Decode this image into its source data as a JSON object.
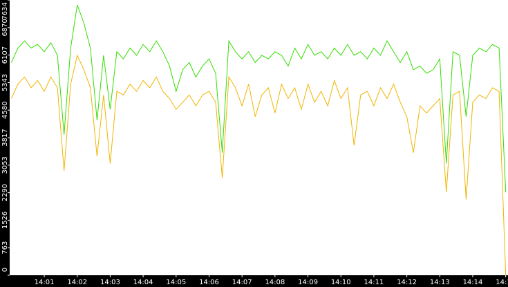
{
  "chart_data": {
    "type": "line",
    "x": [
      0,
      0.2,
      0.4,
      0.6,
      0.8,
      1.0,
      1.2,
      1.4,
      1.6,
      1.8,
      2.0,
      2.2,
      2.4,
      2.6,
      2.8,
      3.0,
      3.2,
      3.4,
      3.6,
      3.8,
      4.0,
      4.2,
      4.4,
      4.6,
      4.8,
      5.0,
      5.2,
      5.4,
      5.6,
      5.8,
      6.0,
      6.2,
      6.4,
      6.6,
      6.8,
      7.0,
      7.2,
      7.4,
      7.6,
      7.8,
      8.0,
      8.2,
      8.4,
      8.6,
      8.8,
      9.0,
      9.2,
      9.4,
      9.6,
      9.8,
      10.0,
      10.2,
      10.4,
      10.6,
      10.8,
      11.0,
      11.2,
      11.4,
      11.6,
      11.8,
      12.0,
      12.2,
      12.4,
      12.6,
      12.8,
      13.0,
      13.2,
      13.4,
      13.6,
      13.8,
      14.0,
      14.2,
      14.4,
      14.6,
      14.8,
      15.0
    ],
    "series": [
      {
        "color": "#33dd00",
        "values": [
          5900,
          6300,
          6500,
          6300,
          6400,
          6200,
          6450,
          6100,
          3900,
          6300,
          7500,
          7000,
          6300,
          4300,
          6100,
          4600,
          6200,
          6000,
          6300,
          6100,
          6400,
          6200,
          6500,
          6200,
          5800,
          5100,
          5700,
          5900,
          5500,
          5800,
          6000,
          5600,
          3400,
          6500,
          6200,
          6000,
          6200,
          5900,
          6100,
          6000,
          6200,
          6100,
          5800,
          6300,
          6000,
          6400,
          6100,
          6200,
          6000,
          6300,
          6100,
          6400,
          6100,
          6200,
          6000,
          6300,
          6100,
          6500,
          6200,
          5900,
          6200,
          5700,
          5800,
          5600,
          5700,
          6000,
          3100,
          6200,
          6100,
          4400,
          6100,
          6300,
          6200,
          6400,
          6300,
          2300
        ]
      },
      {
        "color": "#f0b400",
        "values": [
          4900,
          5300,
          5500,
          5200,
          5400,
          5100,
          5500,
          5200,
          2900,
          5300,
          6100,
          5700,
          5200,
          3300,
          5000,
          3100,
          5100,
          5000,
          5300,
          5100,
          5400,
          5200,
          5500,
          5100,
          4900,
          4600,
          4800,
          5000,
          4700,
          5000,
          5100,
          4800,
          2700,
          5500,
          5200,
          4700,
          5300,
          4400,
          5000,
          5200,
          4500,
          5300,
          4900,
          5200,
          4600,
          5300,
          4800,
          5100,
          4700,
          5400,
          4900,
          5200,
          3600,
          5000,
          5100,
          4700,
          5200,
          4900,
          5300,
          4800,
          4400,
          3400,
          4700,
          4500,
          4700,
          4900,
          2300,
          5000,
          5100,
          2100,
          4800,
          5000,
          4900,
          5200,
          5100,
          0
        ]
      }
    ],
    "xlim": [
      -0.05,
      15.07
    ],
    "xticks": [
      {
        "value": 1,
        "label": "14:01"
      },
      {
        "value": 2,
        "label": "14:02"
      },
      {
        "value": 3,
        "label": "14:03"
      },
      {
        "value": 4,
        "label": "14:04"
      },
      {
        "value": 5,
        "label": "14:05"
      },
      {
        "value": 6,
        "label": "14:06"
      },
      {
        "value": 7,
        "label": "14:07"
      },
      {
        "value": 8,
        "label": "14:08"
      },
      {
        "value": 9,
        "label": "14:09"
      },
      {
        "value": 10,
        "label": "14:10"
      },
      {
        "value": 11,
        "label": "14:11"
      },
      {
        "value": 12,
        "label": "14:12"
      },
      {
        "value": 13,
        "label": "14:13"
      },
      {
        "value": 14,
        "label": "14:14"
      },
      {
        "value": 15,
        "label": "14:15"
      }
    ],
    "ylim": [
      0,
      7634
    ],
    "yticks": [
      0,
      763,
      1526,
      2290,
      3053,
      3817,
      4580,
      5343,
      6107,
      6870,
      7634
    ]
  }
}
